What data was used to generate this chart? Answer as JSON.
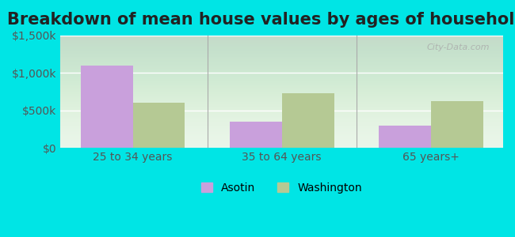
{
  "title": "Breakdown of mean house values by ages of householders",
  "categories": [
    "25 to 34 years",
    "35 to 64 years",
    "65 years+"
  ],
  "asotin_values": [
    1100000,
    350000,
    300000
  ],
  "washington_values": [
    600000,
    725000,
    625000
  ],
  "asotin_color": "#c9a0dc",
  "washington_color": "#b5c994",
  "background_outer": "#00e5e5",
  "background_inner_top": "#e8f5e8",
  "background_inner_bottom": "#f0faf0",
  "ylim": [
    0,
    1500000
  ],
  "yticks": [
    0,
    500000,
    1000000,
    1500000
  ],
  "ytick_labels": [
    "$0",
    "$500k",
    "$1,000k",
    "$1,500k"
  ],
  "bar_width": 0.35,
  "legend_asotin": "Asotin",
  "legend_washington": "Washington",
  "watermark": "City-Data.com",
  "title_fontsize": 15,
  "tick_fontsize": 10,
  "legend_fontsize": 10
}
